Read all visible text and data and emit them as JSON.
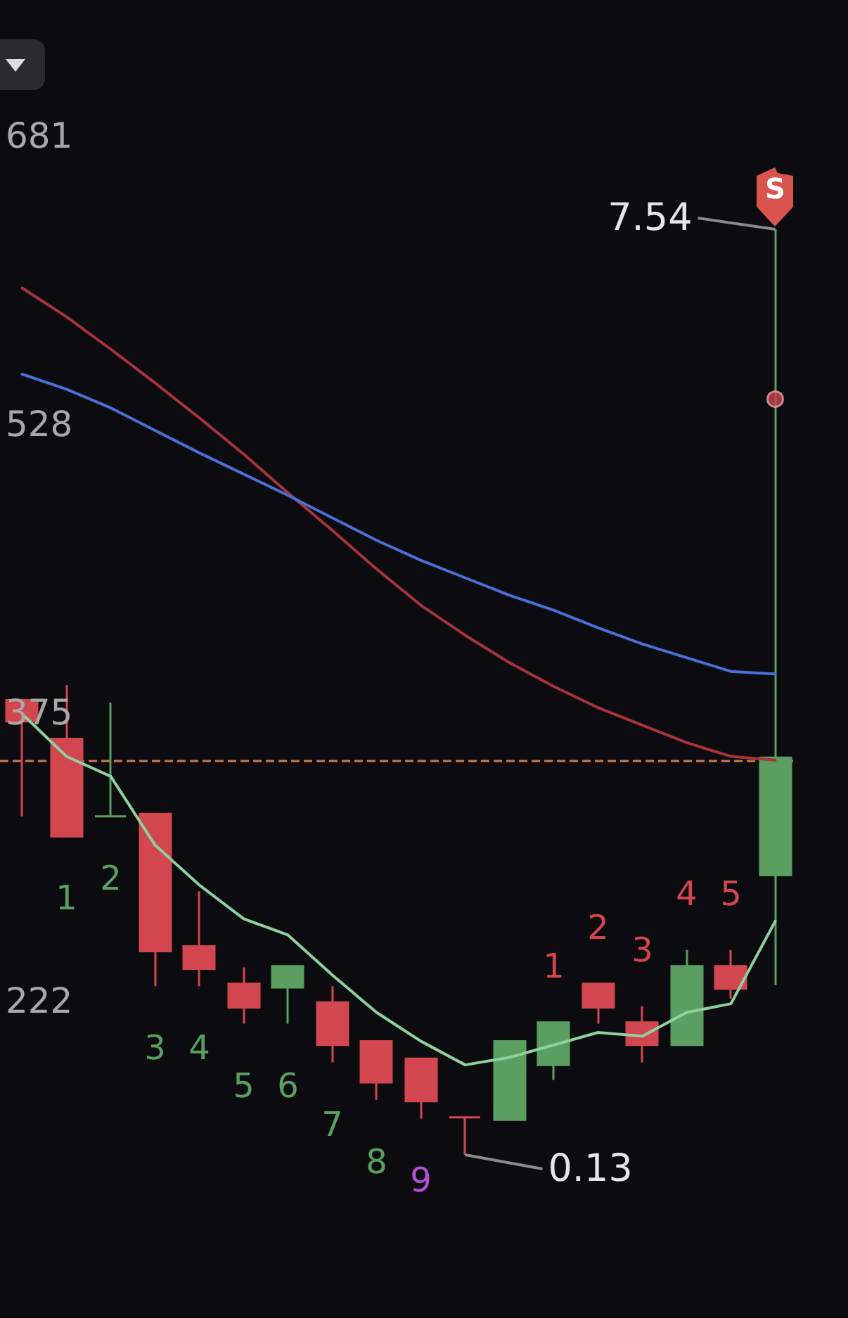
{
  "chart_data": {
    "type": "candlestick",
    "categories": [
      null,
      null,
      null,
      null,
      null,
      null,
      null,
      null,
      null,
      null,
      null,
      null,
      null,
      null,
      null,
      null,
      null,
      null
    ],
    "ohlc": [
      [
        3.77,
        3.78,
        2.84,
        3.6
      ],
      [
        3.46,
        3.89,
        2.68,
        2.68
      ],
      [
        2.84,
        3.75,
        2.84,
        2.84
      ],
      [
        2.86,
        2.86,
        1.48,
        1.76
      ],
      [
        1.8,
        2.24,
        1.48,
        1.62
      ],
      [
        1.5,
        1.63,
        1.18,
        1.31
      ],
      [
        1.47,
        1.64,
        1.18,
        1.64
      ],
      [
        1.35,
        1.48,
        0.87,
        1.01
      ],
      [
        1.04,
        1.04,
        0.57,
        0.71
      ],
      [
        0.9,
        0.9,
        0.42,
        0.56
      ],
      [
        0.43,
        0.43,
        0.13,
        0.43
      ],
      [
        0.41,
        1.04,
        0.41,
        1.04
      ],
      [
        0.85,
        1.19,
        0.73,
        1.19
      ],
      [
        1.5,
        1.5,
        1.18,
        1.31
      ],
      [
        1.19,
        1.32,
        0.87,
        1.01
      ],
      [
        1.01,
        1.77,
        1.01,
        1.64
      ],
      [
        1.64,
        1.77,
        1.38,
        1.46
      ],
      [
        2.37,
        7.54,
        1.49,
        3.31
      ]
    ],
    "colors": [
      "#d2474f",
      "#d2474f",
      "#5a9e62",
      "#d2474f",
      "#d2474f",
      "#d2474f",
      "#5a9e62",
      "#d2474f",
      "#d2474f",
      "#d2474f",
      "#d2474f",
      "#5a9e62",
      "#5a9e62",
      "#d2474f",
      "#d2474f",
      "#5a9e62",
      "#d2474f",
      "#5a9e62"
    ],
    "value_labels": [
      null,
      "1",
      "2",
      "3",
      "4",
      "5",
      "6",
      "7",
      "8",
      "9",
      null,
      null,
      "1",
      "2",
      "3",
      "4",
      "5",
      null
    ],
    "series": [
      {
        "type": "line",
        "color": "#a8333a",
        "values": [
          7.07,
          6.84,
          6.58,
          6.31,
          6.03,
          5.74,
          5.43,
          5.13,
          4.82,
          4.53,
          4.29,
          4.07,
          3.88,
          3.71,
          3.57,
          3.43,
          3.32,
          3.29
        ]
      },
      {
        "type": "line",
        "color": "#4a6fd6",
        "values": [
          6.38,
          6.26,
          6.11,
          5.93,
          5.75,
          5.58,
          5.41,
          5.23,
          5.05,
          4.89,
          4.75,
          4.61,
          4.49,
          4.35,
          4.22,
          4.11,
          4.0,
          3.98
        ]
      },
      {
        "type": "line",
        "color": "#8fd19e",
        "values": [
          3.66,
          3.32,
          3.16,
          2.61,
          2.29,
          2.02,
          1.89,
          1.57,
          1.27,
          1.04,
          0.85,
          0.91,
          1.01,
          1.11,
          1.08,
          1.27,
          1.34,
          2.0
        ]
      },
      {
        "type": "scatter",
        "marker": "circle",
        "color": "#c9444f",
        "values": [
          null,
          null,
          null,
          null,
          null,
          null,
          null,
          null,
          null,
          null,
          null,
          null,
          null,
          null,
          null,
          null,
          null,
          6.18
        ]
      }
    ],
    "ref_lines": [
      {
        "axis": "y",
        "value": 3.29,
        "color": "#c87a4a",
        "line_style": "dashed"
      }
    ],
    "annotations": [
      "S",
      "7.54",
      "0.13",
      "681",
      "528",
      "375",
      "222"
    ]
  }
}
